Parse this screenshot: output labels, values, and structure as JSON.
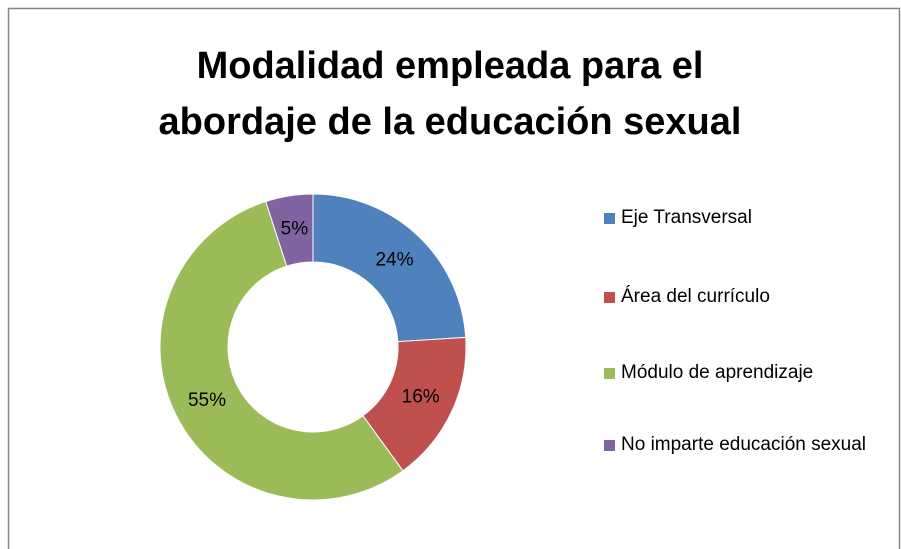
{
  "chart_data": {
    "type": "donut",
    "title": "Modalidad empleada para el abordaje de la educación sexual",
    "categories": [
      "Eje Transversal",
      "Área del currículo",
      "Módulo de aprendizaje",
      "No imparte educación sexual"
    ],
    "values": [
      24,
      16,
      55,
      5
    ],
    "value_labels": [
      "24%",
      "16%",
      "55%",
      "5%"
    ],
    "colors": [
      "#4f81bd",
      "#c0504d",
      "#9bbb59",
      "#8064a2"
    ],
    "legend": "right"
  }
}
